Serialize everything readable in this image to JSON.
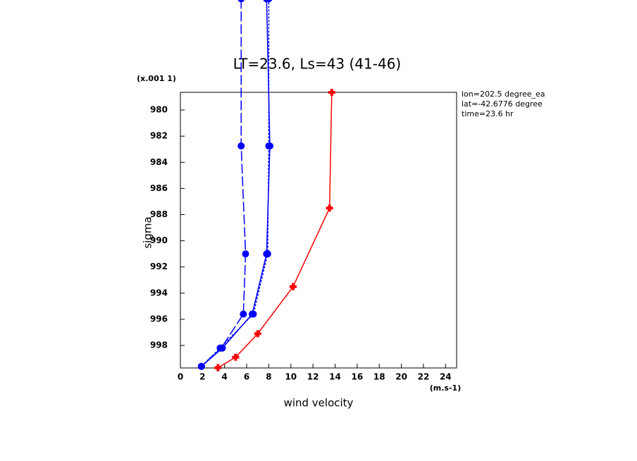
{
  "chart_data": {
    "type": "line",
    "title": "LT=23.6, Ls=43 (41-46)",
    "x_label": "wind velocity",
    "x_units": "(m.s-1)",
    "y_label": "sigma",
    "y_units": "(x.001 1)",
    "annotations": [
      "lon=202.5 degree_ea",
      "lat=-42.6776 degree",
      "time=23.6 hr"
    ],
    "xlim": [
      0,
      25
    ],
    "ylim": [
      999.72,
      978.65
    ],
    "xticks": [
      0,
      2,
      4,
      6,
      8,
      10,
      12,
      14,
      16,
      18,
      20,
      22,
      24
    ],
    "yticks": [
      980,
      982,
      984,
      986,
      988,
      990,
      992,
      994,
      996,
      998
    ],
    "series": [
      {
        "color": "#ff0000",
        "dash": "solid",
        "marker": "plus",
        "x": [
          13.7,
          13.5,
          10.2,
          7.0,
          5.0,
          3.4
        ],
        "y": [
          978.65,
          987.5,
          993.5,
          997.1,
          998.9,
          999.7
        ]
      },
      {
        "color": "#0000ff",
        "dash": "solid",
        "marker": "circle",
        "x": [
          7.8,
          8.1,
          7.8,
          6.5,
          3.8,
          1.9
        ],
        "y": [
          971.5,
          982.75,
          991.0,
          995.6,
          998.2,
          999.6
        ]
      },
      {
        "color": "#0000ff",
        "dash": "short",
        "marker": "circle",
        "x": [
          8.0,
          8.0,
          7.9,
          6.6,
          3.6,
          1.9
        ],
        "y": [
          971.5,
          982.75,
          991.0,
          995.6,
          998.2,
          999.6
        ]
      },
      {
        "color": "#0000ff",
        "dash": "long",
        "marker": "circle",
        "x": [
          5.5,
          5.5,
          5.9,
          5.7,
          3.7,
          1.9
        ],
        "y": [
          971.5,
          982.75,
          991.0,
          995.6,
          998.2,
          999.6
        ]
      }
    ]
  }
}
